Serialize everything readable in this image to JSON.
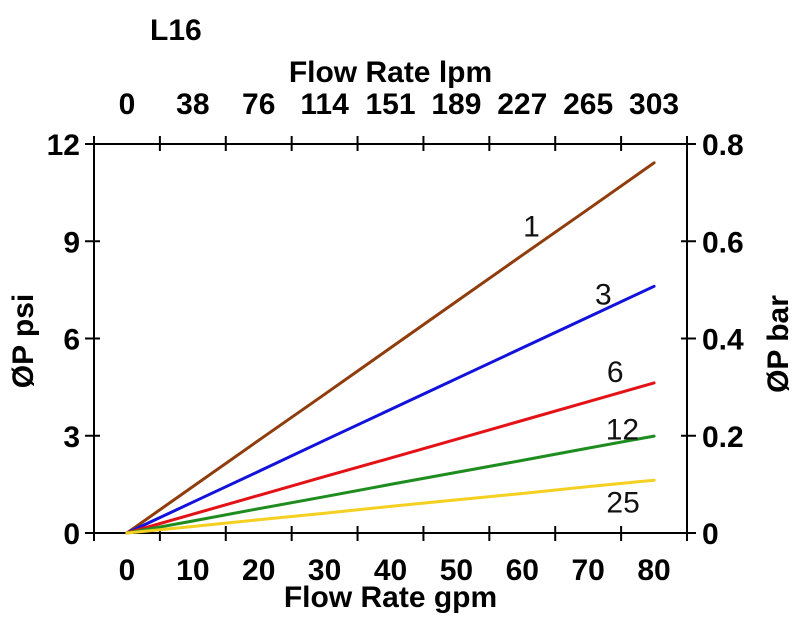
{
  "title": "L16",
  "chart_data": {
    "type": "line",
    "title": "L16",
    "grid": false,
    "legend": "inline labels on curves",
    "x_axis_top": {
      "label": "Flow Rate lpm",
      "tick_labels": [
        "0",
        "38",
        "76",
        "114",
        "151",
        "189",
        "227",
        "265",
        "303"
      ],
      "range_lpm": [
        0,
        303
      ]
    },
    "x_axis_bottom": {
      "label": "Flow Rate gpm",
      "tick_labels": [
        "0",
        "10",
        "20",
        "30",
        "40",
        "50",
        "60",
        "70",
        "80"
      ],
      "tick_values_gpm": [
        0,
        10,
        20,
        30,
        40,
        50,
        60,
        70,
        80
      ],
      "range_gpm": [
        0,
        80
      ]
    },
    "y_axis_left": {
      "label": "ØP psi",
      "tick_labels": [
        "0",
        "3",
        "6",
        "9",
        "12"
      ],
      "tick_values_psi": [
        0,
        3,
        6,
        9,
        12
      ],
      "range_psi": [
        0,
        12
      ]
    },
    "y_axis_right": {
      "label": "ØP bar",
      "tick_labels": [
        "0",
        "0.2",
        "0.4",
        "0.6",
        "0.8"
      ],
      "tick_values_bar": [
        0,
        0.2,
        0.4,
        0.6,
        0.8
      ],
      "range_bar": [
        0,
        0.8
      ]
    },
    "x_gpm": [
      0,
      10,
      20,
      30,
      40,
      50,
      60,
      70,
      80
    ],
    "series": [
      {
        "name": "1",
        "color": "#8F3D0C",
        "psi": [
          0,
          1.43,
          2.86,
          4.28,
          5.71,
          7.14,
          8.57,
          9.99,
          11.42
        ],
        "label_at": {
          "gpm": 61.4,
          "psi": 9.45
        }
      },
      {
        "name": "3",
        "color": "#1212DC",
        "psi": [
          0,
          0.95,
          1.9,
          2.86,
          3.81,
          4.76,
          5.71,
          6.66,
          7.61
        ],
        "label_at": {
          "gpm": 72.3,
          "psi": 7.36
        }
      },
      {
        "name": "6",
        "color": "#E21217",
        "psi": [
          0,
          0.58,
          1.16,
          1.74,
          2.31,
          2.89,
          3.47,
          4.05,
          4.63
        ],
        "label_at": {
          "gpm": 74.1,
          "psi": 4.97
        }
      },
      {
        "name": "12",
        "color": "#1E8C1E",
        "psi": [
          0,
          0.37,
          0.75,
          1.12,
          1.5,
          1.87,
          2.24,
          2.62,
          2.99
        ],
        "label_at": {
          "gpm": 75.2,
          "psi": 3.19
        }
      },
      {
        "name": "25",
        "color": "#F5D021",
        "psi": [
          0,
          0.2,
          0.41,
          0.61,
          0.82,
          1.02,
          1.22,
          1.43,
          1.63
        ],
        "label_at": {
          "gpm": 75.3,
          "psi": 0.94
        }
      }
    ],
    "frame_color": "#000000",
    "background_color": "#FFFFFF"
  }
}
